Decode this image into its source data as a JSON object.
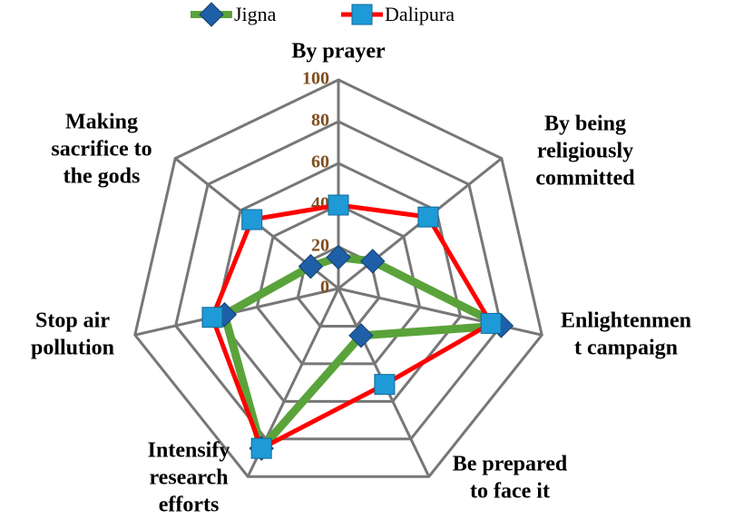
{
  "chart_data": {
    "type": "radar",
    "categories": [
      [
        "By prayer"
      ],
      [
        "By being",
        "religiously",
        "committed"
      ],
      [
        "Enlightenmen",
        "t campaign"
      ],
      [
        "Be prepared",
        "to face it"
      ],
      [
        "Intensify",
        "research",
        "efforts"
      ],
      [
        "Stop air",
        "pollution"
      ],
      [
        "Making",
        "sacrifice to",
        "the gods"
      ]
    ],
    "series": [
      {
        "name": "Jigna",
        "color": "#5aa33a",
        "marker_color": "#1f5fa8",
        "values": [
          15,
          21,
          80,
          25,
          85,
          56,
          17
        ]
      },
      {
        "name": "Dalipura",
        "color": "#ff0000",
        "marker_color": "#1e9ad6",
        "values": [
          40,
          55,
          75,
          51,
          85,
          62,
          53
        ]
      }
    ],
    "ylim": [
      0,
      100
    ],
    "yticks": [
      0,
      20,
      40,
      60,
      80,
      100
    ],
    "grid": true,
    "legend": "top"
  }
}
